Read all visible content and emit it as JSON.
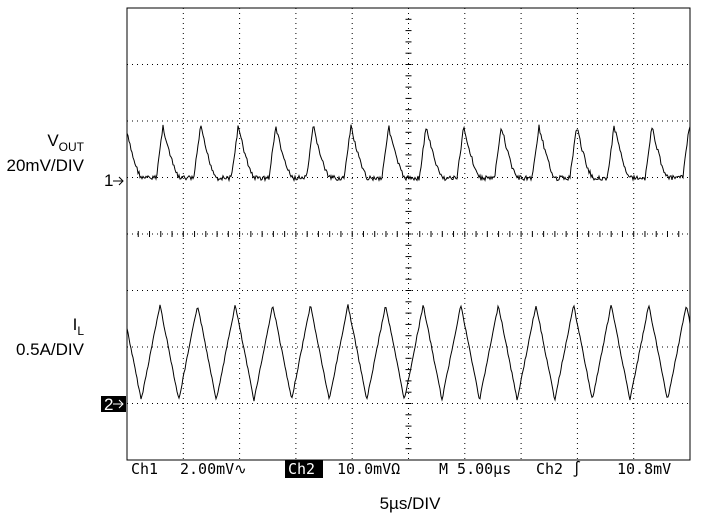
{
  "channels": [
    {
      "name": "V",
      "subscript": "OUT",
      "scale": "20mV/DIV",
      "marker": "1"
    },
    {
      "name": "I",
      "subscript": "L",
      "scale": "0.5A/DIV",
      "marker": "2"
    }
  ],
  "status_bar": {
    "ch1": "Ch1",
    "ch1_scale": "2.00mV∿",
    "ch2": "Ch2",
    "ch2_scale": "10.0mVΩ",
    "timebase": "M 5.00µs",
    "trigger_source": "Ch2 ∫",
    "trigger_level": "10.8mV"
  },
  "x_axis_label": "5µs/DIV"
}
